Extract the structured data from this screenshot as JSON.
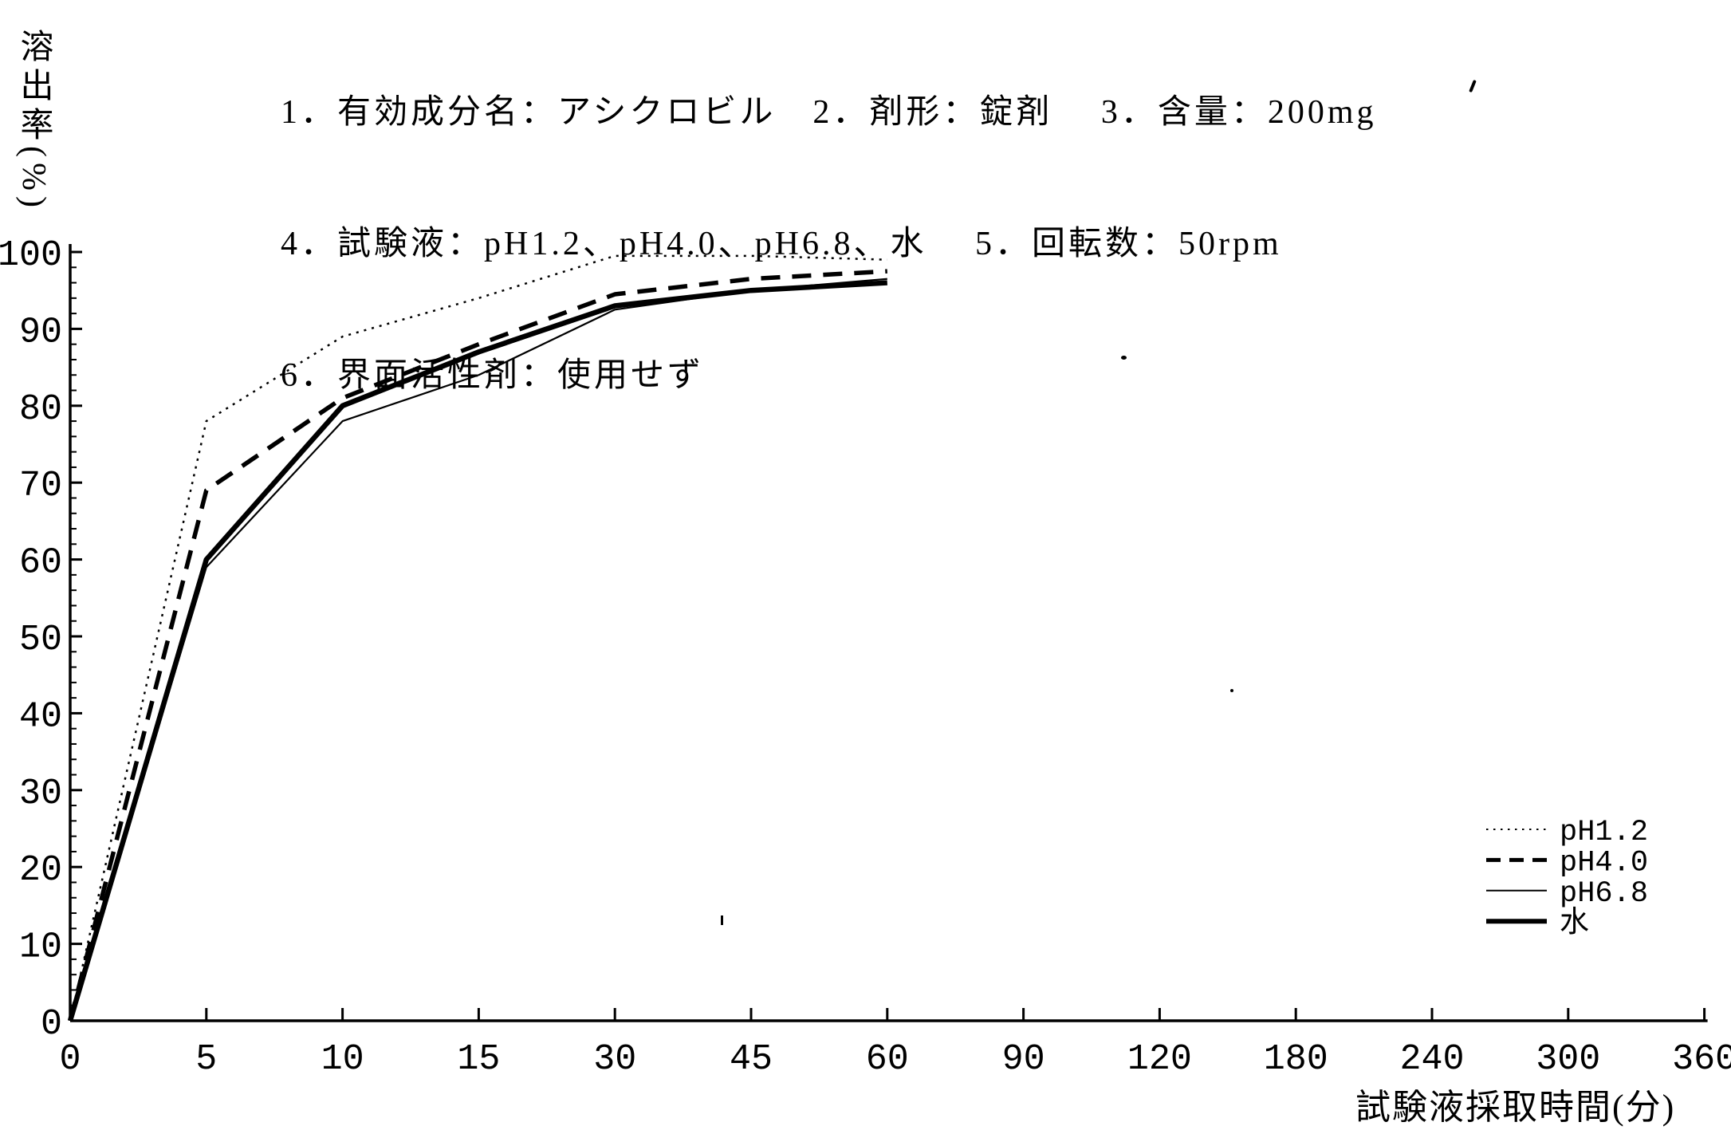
{
  "header": {
    "lines": [
      "1．有効成分名：アシクロビル　2．剤形：錠剤　 3．含量：200mg",
      "4．試験液：pH1.2、pH4.0、pH6.8、水　 5．回転数：50rpm",
      "6．界面活性剤：使用せず"
    ]
  },
  "chart_data": {
    "type": "line",
    "title": "",
    "xlabel": "試験液採取時間(分)",
    "ylabel": "溶出率(%)",
    "grid": false,
    "line_color": "#000000",
    "ylim": [
      0,
      100
    ],
    "y_tick_step": 10,
    "y_tick_labels": [
      "0",
      "10",
      "20",
      "30",
      "40",
      "50",
      "60",
      "70",
      "80",
      "90",
      "100"
    ],
    "x_tick_labels": [
      "0",
      "5",
      "10",
      "15",
      "30",
      "45",
      "60",
      "90",
      "120",
      "180",
      "240",
      "300",
      "360"
    ],
    "x_axis_note": "tick marks equally spaced (ordinal time axis, minutes)",
    "x": [
      0,
      5,
      10,
      15,
      30,
      45,
      60
    ],
    "series": [
      {
        "name": "pH1.2",
        "style": "dotted",
        "values": [
          0,
          78,
          89,
          94,
          99.5,
          99.5,
          99
        ]
      },
      {
        "name": "pH4.0",
        "style": "dashed",
        "values": [
          0,
          69,
          81,
          88,
          94.5,
          96.5,
          97.5
        ]
      },
      {
        "name": "pH6.8",
        "style": "thin-solid",
        "values": [
          0,
          59,
          78,
          84,
          92.5,
          95,
          96.5
        ]
      },
      {
        "name": "水",
        "style": "thick-solid",
        "values": [
          0,
          60,
          80,
          87,
          93,
          95,
          96
        ]
      }
    ],
    "legend_position": "right-middle"
  }
}
